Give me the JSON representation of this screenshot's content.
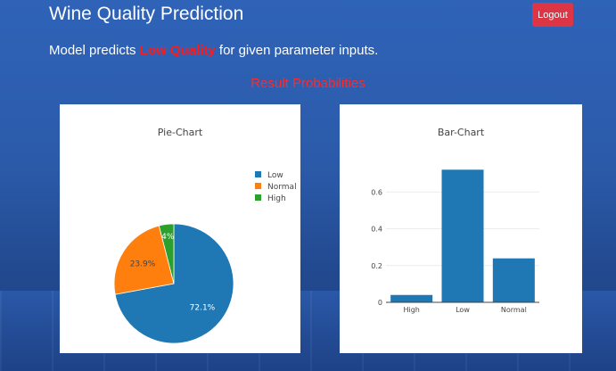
{
  "header": {
    "title": "Wine Quality Prediction",
    "logout_label": "Logout"
  },
  "result": {
    "prefix": "Model predicts ",
    "quality": "Low Quality",
    "suffix": " for given parameter inputs."
  },
  "section_title": "Result Probabilities",
  "colors": {
    "low": "#1f77b4",
    "normal": "#ff7f0e",
    "high": "#2ca02c",
    "logout": "#dc3545",
    "highlight": "#ff1a1a"
  },
  "chart_data": [
    {
      "type": "pie",
      "title": "Pie-Chart",
      "labels": [
        "Low",
        "Normal",
        "High"
      ],
      "values": [
        72.1,
        23.9,
        4.0
      ],
      "display_labels": [
        "72.1%",
        "23.9%",
        "4%"
      ],
      "colors": [
        "#1f77b4",
        "#ff7f0e",
        "#2ca02c"
      ],
      "legend": "right"
    },
    {
      "type": "bar",
      "title": "Bar-Chart",
      "categories": [
        "High",
        "Low",
        "Normal"
      ],
      "values": [
        0.04,
        0.721,
        0.239
      ],
      "ylim": [
        0,
        0.8
      ],
      "yticks": [
        "0",
        "0.2",
        "0.4",
        "0.6"
      ],
      "grid": true
    }
  ]
}
